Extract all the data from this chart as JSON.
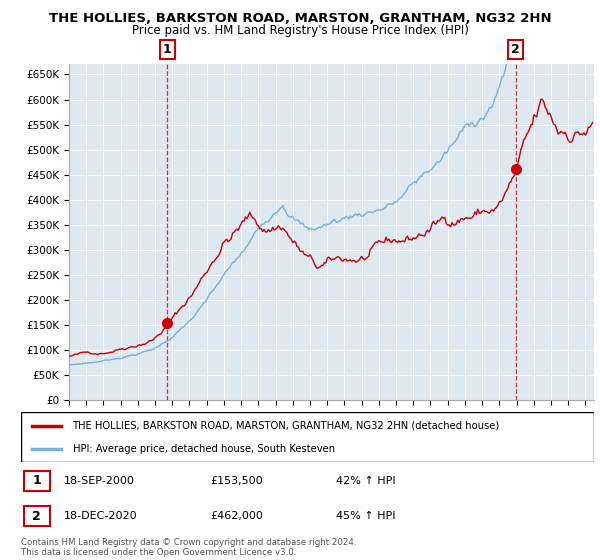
{
  "title_line1": "THE HOLLIES, BARKSTON ROAD, MARSTON, GRANTHAM, NG32 2HN",
  "title_line2": "Price paid vs. HM Land Registry's House Price Index (HPI)",
  "ytick_labels": [
    "£0",
    "£50K",
    "£100K",
    "£150K",
    "£200K",
    "£250K",
    "£300K",
    "£350K",
    "£400K",
    "£450K",
    "£500K",
    "£550K",
    "£600K",
    "£650K"
  ],
  "yticks": [
    0,
    50000,
    100000,
    150000,
    200000,
    250000,
    300000,
    350000,
    400000,
    450000,
    500000,
    550000,
    600000,
    650000
  ],
  "ylim": [
    0,
    670000
  ],
  "xlim_start": 1995.0,
  "xlim_end": 2025.5,
  "xtick_years": [
    1995,
    1996,
    1997,
    1998,
    1999,
    2000,
    2001,
    2002,
    2003,
    2004,
    2005,
    2006,
    2007,
    2008,
    2009,
    2010,
    2011,
    2012,
    2013,
    2014,
    2015,
    2016,
    2017,
    2018,
    2019,
    2020,
    2021,
    2022,
    2023,
    2024,
    2025
  ],
  "sale1_x": 2000.71,
  "sale1_y": 153500,
  "sale2_x": 2020.96,
  "sale2_y": 462000,
  "red_line_color": "#cc0000",
  "blue_line_color": "#7bafd4",
  "plot_bg_color": "#dde8f0",
  "marker_color": "#cc0000",
  "grid_color": "#ffffff",
  "annotation_box_color": "#cc0000",
  "legend_entry1": "THE HOLLIES, BARKSTON ROAD, MARSTON, GRANTHAM, NG32 2HN (detached house)",
  "legend_entry2": "HPI: Average price, detached house, South Kesteven",
  "table_row1": [
    "1",
    "18-SEP-2000",
    "£153,500",
    "42% ↑ HPI"
  ],
  "table_row2": [
    "2",
    "18-DEC-2020",
    "£462,000",
    "45% ↑ HPI"
  ],
  "footer": "Contains HM Land Registry data © Crown copyright and database right 2024.\nThis data is licensed under the Open Government Licence v3.0."
}
